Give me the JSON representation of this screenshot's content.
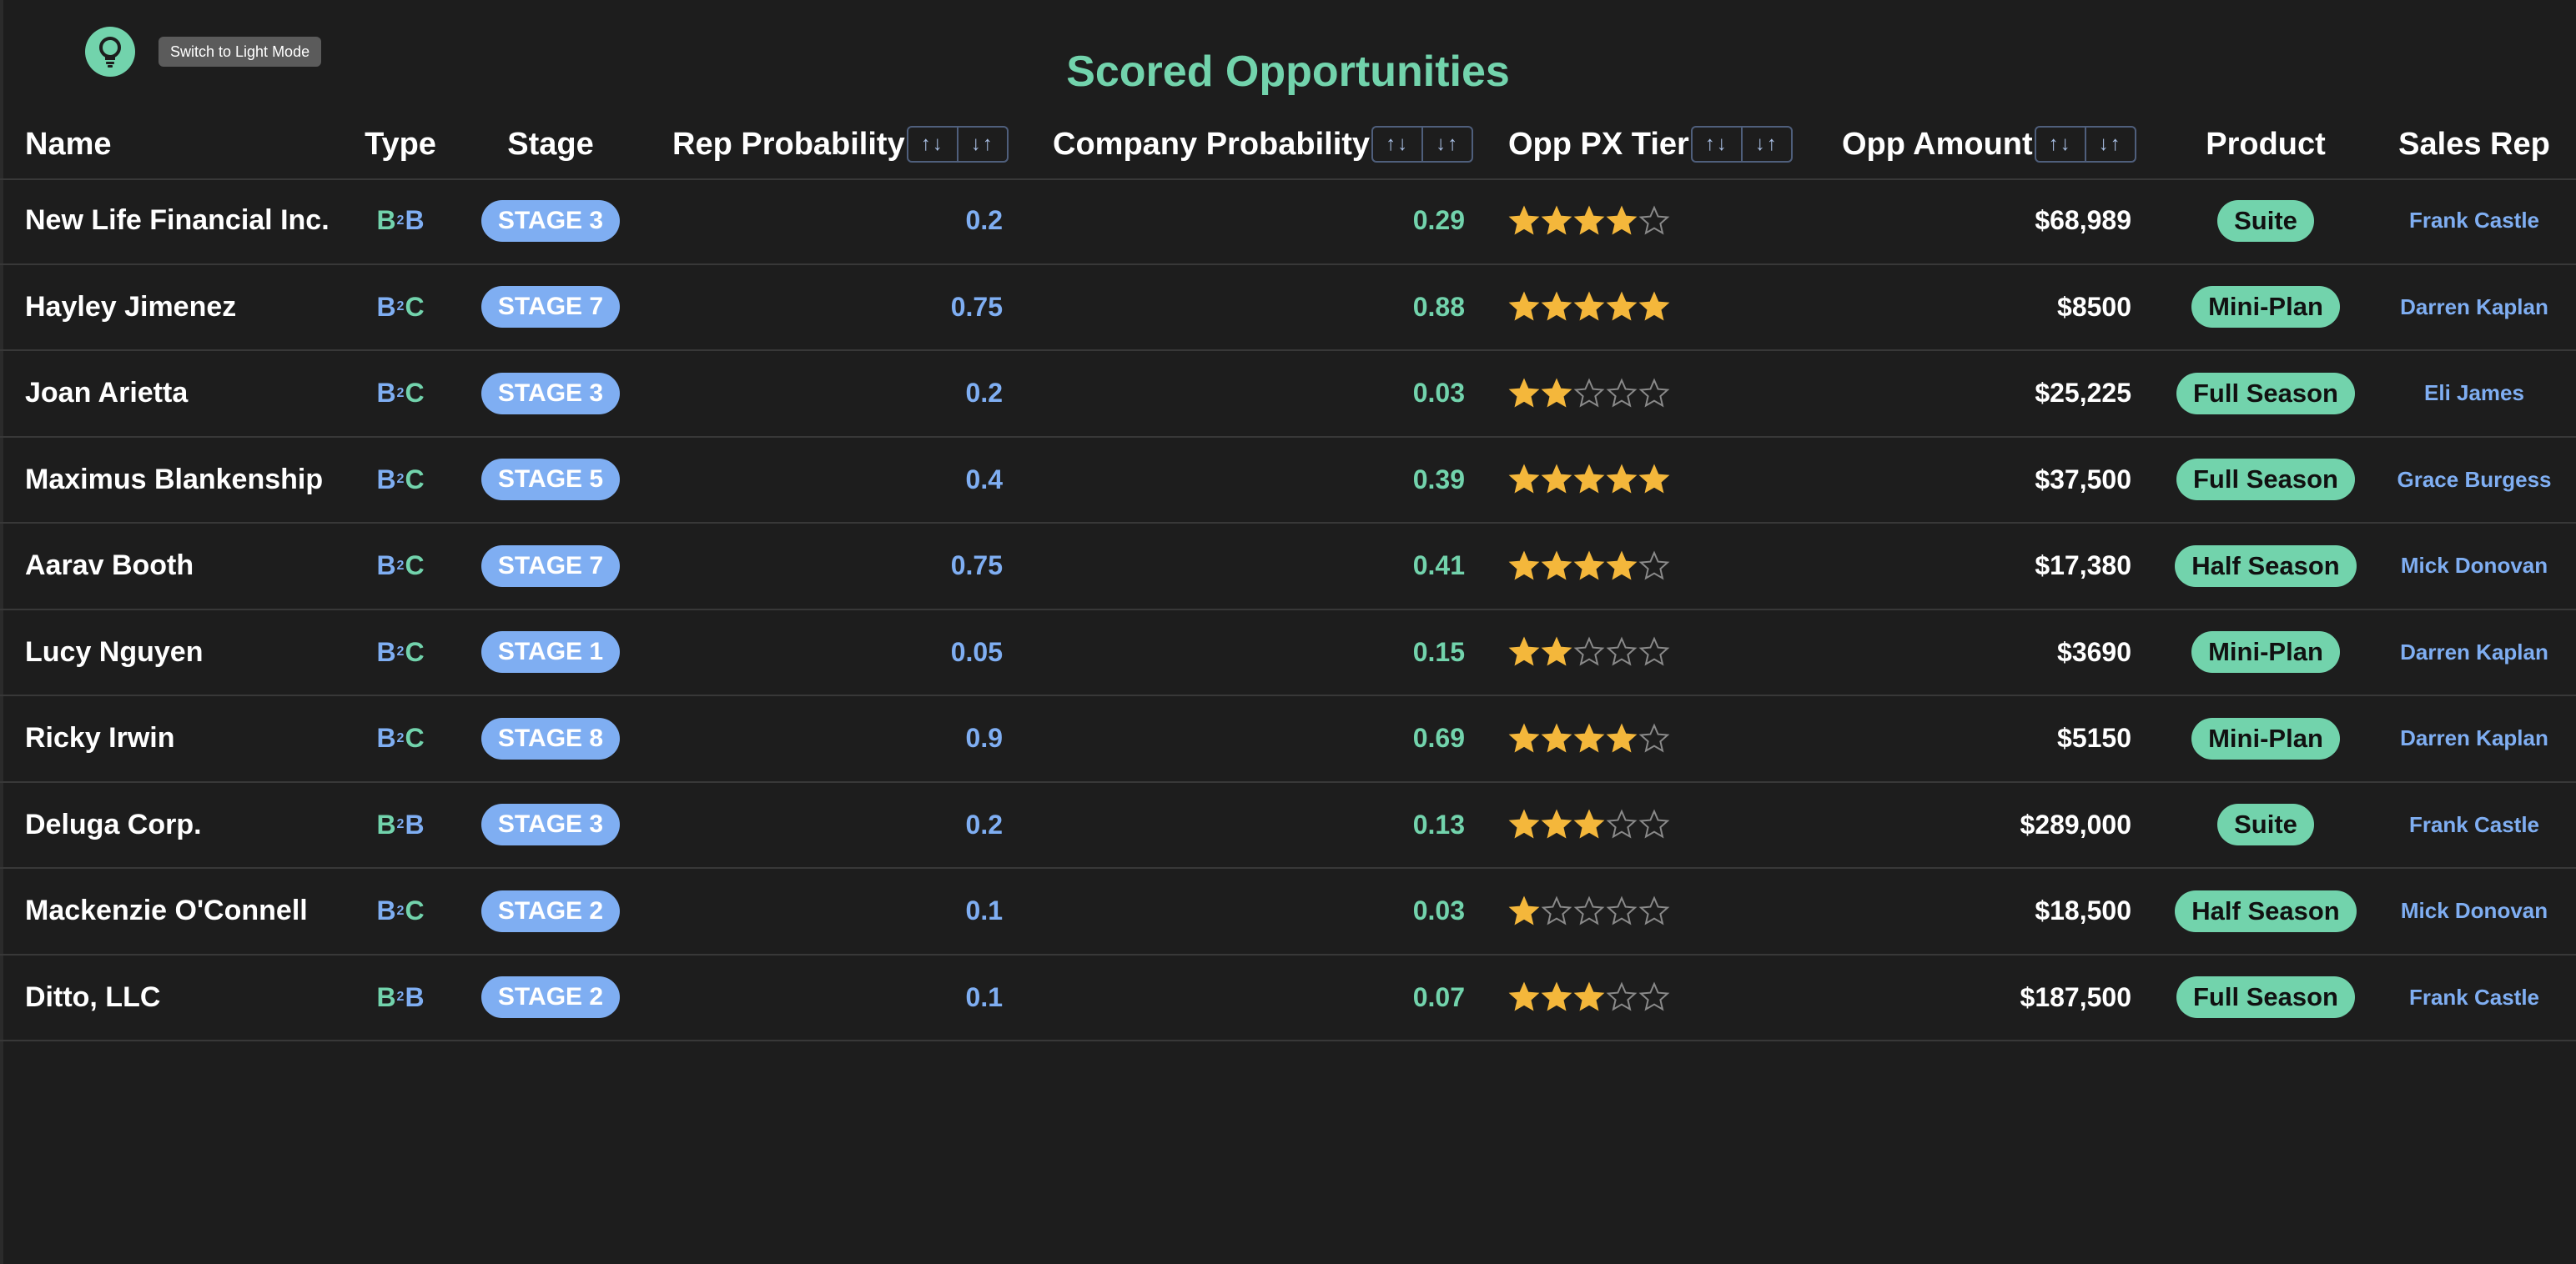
{
  "theme_toggle": {
    "tooltip": "Switch to Light Mode",
    "icon": "lightbulb-icon"
  },
  "title": "Scored Opportunities",
  "colors": {
    "background": "#1d1d1d",
    "accent_green": "#72d3ac",
    "accent_blue": "#7faef2",
    "star": "#f4b73b"
  },
  "columns": {
    "name": "Name",
    "type": "Type",
    "stage": "Stage",
    "rep_probability": "Rep Probability",
    "company_probability": "Company Probability",
    "opp_px_tier": "Opp PX Tier",
    "opp_amount": "Opp Amount",
    "product": "Product",
    "sales_rep": "Sales Rep"
  },
  "sort_controls": {
    "ascending": "↑↓",
    "descending": "↓↑"
  },
  "rows": [
    {
      "name": "New Life Financial Inc.",
      "type": [
        "B",
        "2",
        "B"
      ],
      "stage": "STAGE 3",
      "rep_probability": "0.2",
      "company_probability": "0.29",
      "tier_stars": 4,
      "opp_amount": "$68,989",
      "product": "Suite",
      "sales_rep": "Frank Castle"
    },
    {
      "name": "Hayley Jimenez",
      "type": [
        "B",
        "2",
        "C"
      ],
      "stage": "STAGE 7",
      "rep_probability": "0.75",
      "company_probability": "0.88",
      "tier_stars": 5,
      "opp_amount": "$8500",
      "product": "Mini-Plan",
      "sales_rep": "Darren Kaplan"
    },
    {
      "name": "Joan Arietta",
      "type": [
        "B",
        "2",
        "C"
      ],
      "stage": "STAGE 3",
      "rep_probability": "0.2",
      "company_probability": "0.03",
      "tier_stars": 2,
      "opp_amount": "$25,225",
      "product": "Full Season",
      "sales_rep": "Eli James"
    },
    {
      "name": "Maximus Blankenship",
      "type": [
        "B",
        "2",
        "C"
      ],
      "stage": "STAGE 5",
      "rep_probability": "0.4",
      "company_probability": "0.39",
      "tier_stars": 5,
      "opp_amount": "$37,500",
      "product": "Full Season",
      "sales_rep": "Grace Burgess"
    },
    {
      "name": "Aarav Booth",
      "type": [
        "B",
        "2",
        "C"
      ],
      "stage": "STAGE 7",
      "rep_probability": "0.75",
      "company_probability": "0.41",
      "tier_stars": 4,
      "opp_amount": "$17,380",
      "product": "Half Season",
      "sales_rep": "Mick Donovan"
    },
    {
      "name": "Lucy Nguyen",
      "type": [
        "B",
        "2",
        "C"
      ],
      "stage": "STAGE 1",
      "rep_probability": "0.05",
      "company_probability": "0.15",
      "tier_stars": 2,
      "opp_amount": "$3690",
      "product": "Mini-Plan",
      "sales_rep": "Darren Kaplan"
    },
    {
      "name": "Ricky Irwin",
      "type": [
        "B",
        "2",
        "C"
      ],
      "stage": "STAGE 8",
      "rep_probability": "0.9",
      "company_probability": "0.69",
      "tier_stars": 4,
      "opp_amount": "$5150",
      "product": "Mini-Plan",
      "sales_rep": "Darren Kaplan"
    },
    {
      "name": "Deluga Corp.",
      "type": [
        "B",
        "2",
        "B"
      ],
      "stage": "STAGE 3",
      "rep_probability": "0.2",
      "company_probability": "0.13",
      "tier_stars": 3,
      "opp_amount": "$289,000",
      "product": "Suite",
      "sales_rep": "Frank Castle"
    },
    {
      "name": "Mackenzie O'Connell",
      "type": [
        "B",
        "2",
        "C"
      ],
      "stage": "STAGE 2",
      "rep_probability": "0.1",
      "company_probability": "0.03",
      "tier_stars": 1,
      "opp_amount": "$18,500",
      "product": "Half Season",
      "sales_rep": "Mick Donovan"
    },
    {
      "name": "Ditto, LLC",
      "type": [
        "B",
        "2",
        "B"
      ],
      "stage": "STAGE 2",
      "rep_probability": "0.1",
      "company_probability": "0.07",
      "tier_stars": 3,
      "opp_amount": "$187,500",
      "product": "Full Season",
      "sales_rep": "Frank Castle"
    }
  ]
}
